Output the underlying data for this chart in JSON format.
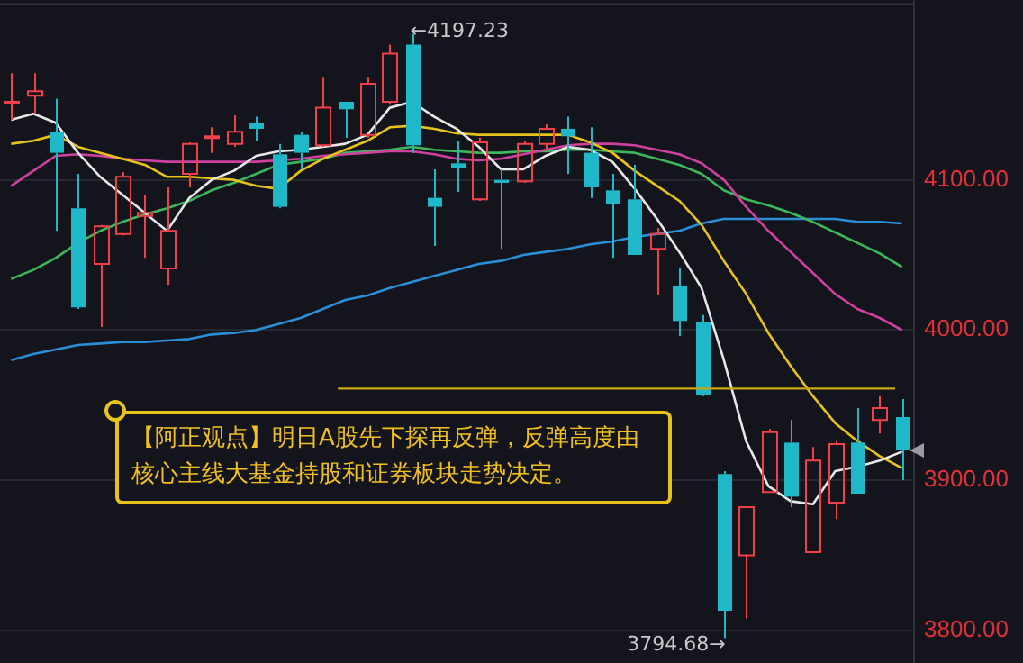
{
  "chart_data": {
    "type": "candlestick",
    "categories": [
      null,
      null,
      null,
      null,
      null,
      null,
      null,
      null,
      null,
      null,
      null,
      null,
      null,
      null,
      null,
      null,
      null,
      null,
      null,
      null,
      null,
      null,
      null,
      null,
      null,
      null,
      null,
      null,
      null,
      null,
      null,
      null,
      null,
      null,
      null,
      null,
      null,
      null,
      null,
      null,
      null
    ],
    "ohlc": [
      [
        4151,
        4171,
        4140,
        4152
      ],
      [
        4156,
        4171,
        4144,
        4159
      ],
      [
        4132,
        4154,
        4066,
        4118
      ],
      [
        4081,
        4104,
        4014,
        4015
      ],
      [
        4044,
        4070,
        4002,
        4069
      ],
      [
        4064,
        4105,
        4063,
        4102
      ],
      [
        4076,
        4090,
        4048,
        4078
      ],
      [
        4041,
        4095,
        4030,
        4066
      ],
      [
        4104,
        4125,
        4095,
        4124
      ],
      [
        4128,
        4135,
        4118,
        4129
      ],
      [
        4124,
        4143,
        4122,
        4132
      ],
      [
        4138,
        4142,
        4126,
        4134
      ],
      [
        4117,
        4124,
        4081,
        4082
      ],
      [
        4130,
        4132,
        4107,
        4118
      ],
      [
        4123,
        4168,
        4122,
        4148
      ],
      [
        4152,
        4152,
        4128,
        4147
      ],
      [
        4130,
        4168,
        4128,
        4164
      ],
      [
        4152,
        4190,
        4150,
        4184
      ],
      [
        4190,
        4197.23,
        4118,
        4123
      ],
      [
        4088,
        4107,
        4056,
        4082
      ],
      [
        4111,
        4126,
        4092,
        4108
      ],
      [
        4087,
        4128,
        4086,
        4125
      ],
      [
        4100,
        4107,
        4054,
        4098
      ],
      [
        4099,
        4126,
        4098,
        4124
      ],
      [
        4124,
        4137,
        4120,
        4134
      ],
      [
        4134,
        4142,
        4104,
        4129
      ],
      [
        4118,
        4135,
        4088,
        4095
      ],
      [
        4093,
        4104,
        4048,
        4084
      ],
      [
        4087,
        4110,
        4050,
        4050
      ],
      [
        4054,
        4068,
        4023,
        4064
      ],
      [
        4029,
        4041,
        3996,
        4006
      ],
      [
        4005,
        4010,
        3956,
        3957
      ],
      [
        3904,
        3906,
        3794.68,
        3813
      ],
      [
        3850,
        3882,
        3808,
        3882
      ],
      [
        3892,
        3934,
        3892,
        3932
      ],
      [
        3925,
        3940,
        3882,
        3889
      ],
      [
        3852,
        3922,
        3852,
        3913
      ],
      [
        3885,
        3926,
        3874,
        3924
      ],
      [
        3925,
        3948,
        3891,
        3891
      ],
      [
        3940,
        3956,
        3931,
        3948
      ],
      [
        3942,
        3954,
        3900,
        3920
      ]
    ],
    "colors": [
      "#f0414b",
      "#f0414b",
      "#1fb8c8",
      "#1fb8c8",
      "#f0414b",
      "#f0414b",
      "#f0414b",
      "#f0414b",
      "#f0414b",
      "#f0414b",
      "#f0414b",
      "#1fb8c8",
      "#1fb8c8",
      "#1fb8c8",
      "#f0414b",
      "#1fb8c8",
      "#f0414b",
      "#f0414b",
      "#1fb8c8",
      "#1fb8c8",
      "#1fb8c8",
      "#f0414b",
      "#1fb8c8",
      "#f0414b",
      "#f0414b",
      "#1fb8c8",
      "#1fb8c8",
      "#1fb8c8",
      "#1fb8c8",
      "#f0414b",
      "#1fb8c8",
      "#1fb8c8",
      "#1fb8c8",
      "#f0414b",
      "#f0414b",
      "#1fb8c8",
      "#f0414b",
      "#f0414b",
      "#1fb8c8",
      "#f0414b",
      "#1fb8c8"
    ],
    "series": [
      {
        "type": "line",
        "color": "#e8e8e8",
        "values": [
          4140,
          4144,
          4138,
          4118,
          4102,
          4090,
          4078,
          4066,
          4088,
          4100,
          4106,
          4116,
          4119,
          4120,
          4122,
          4124,
          4130,
          4148,
          4152,
          4142,
          4134,
          4122,
          4107,
          4107,
          4116,
          4122,
          4120,
          4112,
          4094,
          4074,
          4052,
          4028,
          3980,
          3926,
          3896,
          3886,
          3884,
          3906,
          3909,
          3913,
          3919
        ]
      },
      {
        "type": "line",
        "color": "#e6c21a",
        "values": [
          4124,
          4126,
          4130,
          4122,
          4118,
          4114,
          4110,
          4102,
          4102,
          4101,
          4100,
          4096,
          4094,
          4106,
          4114,
          4120,
          4126,
          4135,
          4136,
          4134,
          4131,
          4130,
          4130,
          4130,
          4130,
          4130,
          4125,
          4118,
          4106,
          4096,
          4086,
          4070,
          4046,
          4024,
          3998,
          3976,
          3956,
          3938,
          3926,
          3916,
          3908
        ]
      },
      {
        "type": "line",
        "color": "#d040a0",
        "values": [
          4096,
          4106,
          4116,
          4117,
          4116,
          4114,
          4113,
          4112,
          4112,
          4112,
          4112,
          4112,
          4113,
          4114,
          4116,
          4117,
          4118,
          4119,
          4119,
          4117,
          4114,
          4113,
          4114,
          4117,
          4120,
          4123,
          4124,
          4124,
          4123,
          4120,
          4117,
          4111,
          4100,
          4082,
          4066,
          4052,
          4038,
          4024,
          4014,
          4008,
          4000
        ]
      },
      {
        "type": "line",
        "color": "#3cb85a",
        "values": [
          4034,
          4040,
          4048,
          4058,
          4066,
          4072,
          4077,
          4081,
          4086,
          4093,
          4098,
          4104,
          4110,
          4112,
          4114,
          4118,
          4119,
          4120,
          4122,
          4120,
          4119,
          4118,
          4118,
          4119,
          4119,
          4120,
          4120,
          4119,
          4118,
          4114,
          4110,
          4104,
          4093,
          4087,
          4083,
          4078,
          4072,
          4065,
          4058,
          4051,
          4042
        ]
      },
      {
        "type": "line",
        "color": "#2a8fd8",
        "values": [
          3980,
          3984,
          3987,
          3990,
          3991,
          3992,
          3992,
          3993,
          3994,
          3997,
          3998,
          4000,
          4004,
          4008,
          4014,
          4020,
          4023,
          4028,
          4032,
          4036,
          4040,
          4044,
          4046,
          4050,
          4052,
          4054,
          4057,
          4059,
          4062,
          4064,
          4066,
          4071,
          4074,
          4074,
          4074,
          4074,
          4074,
          4074,
          4072,
          4072,
          4071
        ]
      }
    ],
    "ylim": [
      3778,
      4220
    ],
    "yticks": [
      {
        "value": 3800,
        "label": "3800.00"
      },
      {
        "value": 3900,
        "label": "3900.00"
      },
      {
        "value": 4000,
        "label": "4000.00"
      },
      {
        "value": 4100,
        "label": "4100.00"
      }
    ],
    "ref_lines": [
      {
        "axis": "y",
        "value": 3961,
        "color": "#c8a814"
      }
    ],
    "annotations": [
      "←4197.23",
      "3794.68→",
      "【阿正观点】明日A股先下探再反弹，反弹高度由核心主线大基金持股和证券板块走势决定。"
    ],
    "grid": "y",
    "tick_labels": "y",
    "legend": false
  }
}
